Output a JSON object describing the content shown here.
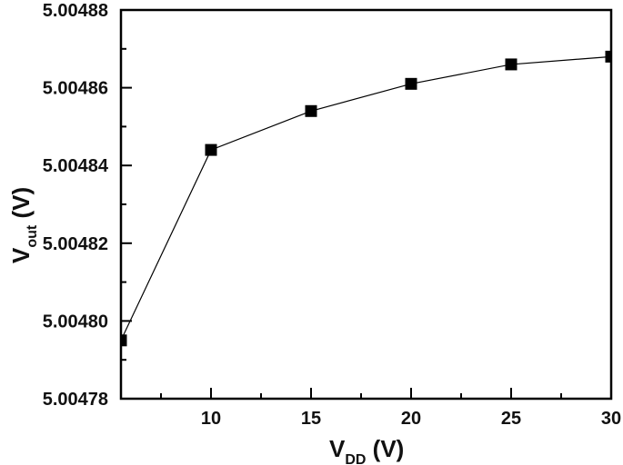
{
  "chart_data": {
    "type": "line",
    "title": "",
    "xlabel": "V_DD (V)",
    "ylabel": "V_out (V)",
    "xlabel_parts": {
      "main": "V",
      "sub": "DD",
      "unit": " (V)"
    },
    "ylabel_parts": {
      "main": "V",
      "sub": "out",
      "unit": " (V)"
    },
    "xlim": [
      5.5,
      30
    ],
    "ylim": [
      5.00478,
      5.00488
    ],
    "x_ticks": [
      10,
      15,
      20,
      25,
      30
    ],
    "x_tick_labels": [
      "10",
      "15",
      "20",
      "25",
      "30"
    ],
    "x_minor_ticks": [
      7.5,
      12.5,
      17.5,
      22.5,
      27.5
    ],
    "y_ticks": [
      5.00478,
      5.0048,
      5.00482,
      5.00484,
      5.00486,
      5.00488
    ],
    "y_tick_labels": [
      "5.00478",
      "5.00480",
      "5.00482",
      "5.00484",
      "5.00486",
      "5.00488"
    ],
    "y_minor_ticks": [
      5.00479,
      5.00481,
      5.00483,
      5.00485,
      5.00487
    ],
    "grid": false,
    "legend": null,
    "series": [
      {
        "name": "Vout",
        "marker": "square",
        "color": "#000000",
        "x": [
          5.5,
          10,
          15,
          20,
          25,
          30
        ],
        "values": [
          5.004795,
          5.004844,
          5.004854,
          5.004861,
          5.004866,
          5.004868
        ]
      }
    ]
  }
}
